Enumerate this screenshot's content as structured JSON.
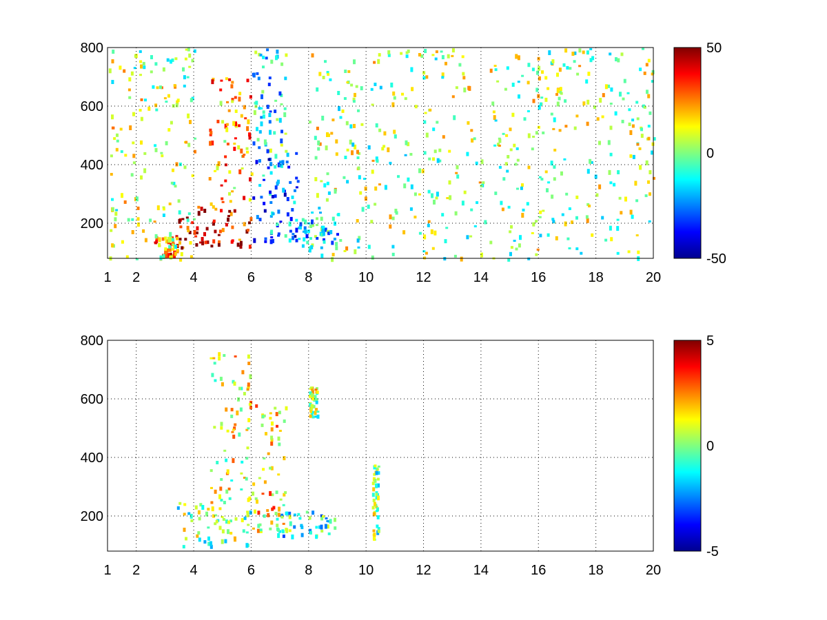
{
  "chart_data": [
    {
      "type": "heatmap",
      "title": "",
      "xlabel": "",
      "ylabel": "",
      "xlim": [
        1,
        20
      ],
      "ylim": [
        80,
        800
      ],
      "x_ticks": [
        1,
        2,
        4,
        6,
        8,
        10,
        12,
        14,
        16,
        18,
        20
      ],
      "x_tick_labels": [
        "1",
        "2",
        "4",
        "6",
        "8",
        "10",
        "12",
        "14",
        "16",
        "18",
        "20"
      ],
      "y_ticks": [
        200,
        400,
        600,
        800
      ],
      "y_tick_labels": [
        "200",
        "400",
        "600",
        "800"
      ],
      "grid": true,
      "colormap": "jet",
      "colorbar": {
        "range": [
          -50,
          50
        ],
        "ticks": [
          50,
          0,
          -50
        ],
        "tick_labels": [
          "50",
          "0",
          "-50"
        ]
      },
      "regions": [
        {
          "x": [
            3.4,
            6.0
          ],
          "y": [
            120,
            260
          ],
          "value": 40
        },
        {
          "x": [
            4.5,
            6.0
          ],
          "y": [
            260,
            700
          ],
          "value": 20
        },
        {
          "x": [
            2.6,
            3.4
          ],
          "y": [
            90,
            160
          ],
          "value": 25
        },
        {
          "x": [
            6.0,
            7.6
          ],
          "y": [
            130,
            450
          ],
          "value": -25
        },
        {
          "x": [
            6.0,
            7.2
          ],
          "y": [
            450,
            800
          ],
          "value": -12
        },
        {
          "x": [
            7.2,
            9.0
          ],
          "y": [
            120,
            240
          ],
          "value": -15
        },
        {
          "x": [
            1.0,
            4.0
          ],
          "y": [
            80,
            800
          ],
          "value": 5
        },
        {
          "x": [
            8.0,
            20.0
          ],
          "y": [
            80,
            800
          ],
          "value": 3
        }
      ]
    },
    {
      "type": "heatmap",
      "title": "",
      "xlabel": "",
      "ylabel": "",
      "xlim": [
        1,
        20
      ],
      "ylim": [
        80,
        800
      ],
      "x_ticks": [
        1,
        2,
        4,
        6,
        8,
        10,
        12,
        14,
        16,
        18,
        20
      ],
      "x_tick_labels": [
        "1",
        "2",
        "4",
        "6",
        "8",
        "10",
        "12",
        "14",
        "16",
        "18",
        "20"
      ],
      "y_ticks": [
        200,
        400,
        600,
        800
      ],
      "y_tick_labels": [
        "200",
        "400",
        "600",
        "800"
      ],
      "grid": true,
      "colormap": "jet",
      "colorbar": {
        "range": [
          -5,
          5
        ],
        "ticks": [
          5,
          0,
          -5
        ],
        "tick_labels": [
          "5",
          "0",
          "-5"
        ]
      },
      "regions": [
        {
          "x": [
            3.4,
            6.0
          ],
          "y": [
            100,
            250
          ],
          "value": 0
        },
        {
          "x": [
            4.5,
            6.0
          ],
          "y": [
            250,
            760
          ],
          "value": 1
        },
        {
          "x": [
            6.0,
            7.2
          ],
          "y": [
            150,
            600
          ],
          "value": 1.5
        },
        {
          "x": [
            6.8,
            9.0
          ],
          "y": [
            130,
            220
          ],
          "value": -1
        },
        {
          "x": [
            8.0,
            8.3
          ],
          "y": [
            540,
            650
          ],
          "value": 0.5
        },
        {
          "x": [
            10.2,
            10.4
          ],
          "y": [
            120,
            380
          ],
          "value": 0
        }
      ]
    }
  ]
}
